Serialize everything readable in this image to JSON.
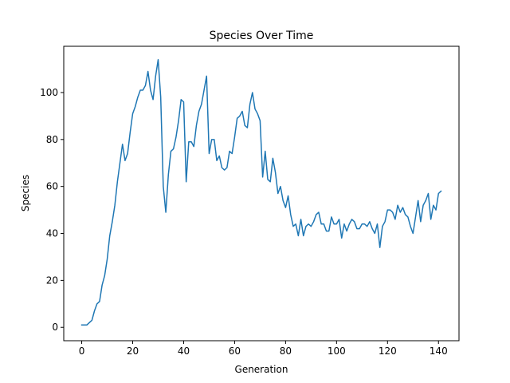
{
  "chart_data": {
    "type": "line",
    "title": "Species Over Time",
    "xlabel": "Generation",
    "ylabel": "Species",
    "xlim": [
      -7.05,
      148.05
    ],
    "ylim": [
      -5.7,
      119.7
    ],
    "xticks": [
      0,
      20,
      40,
      60,
      80,
      100,
      120,
      140
    ],
    "yticks": [
      0,
      20,
      40,
      60,
      80,
      100
    ],
    "grid": false,
    "line_color": "#1f77b4",
    "series": [
      {
        "x": [
          0,
          1,
          2,
          3,
          4,
          5,
          6,
          7,
          8,
          9,
          10,
          11,
          12,
          13,
          14,
          15,
          16,
          17,
          18,
          19,
          20,
          21,
          22,
          23,
          24,
          25,
          26,
          27,
          28,
          29,
          30,
          31,
          32,
          33,
          34,
          35,
          36,
          37,
          38,
          39,
          40,
          41,
          42,
          43,
          44,
          45,
          46,
          47,
          48,
          49,
          50,
          51,
          52,
          53,
          54,
          55,
          56,
          57,
          58,
          59,
          60,
          61,
          62,
          63,
          64,
          65,
          66,
          67,
          68,
          69,
          70,
          71,
          72,
          73,
          74,
          75,
          76,
          77,
          78,
          79,
          80,
          81,
          82,
          83,
          84,
          85,
          86,
          87,
          88,
          89,
          90,
          91,
          92,
          93,
          94,
          95,
          96,
          97,
          98,
          99,
          100,
          101,
          102,
          103,
          104,
          105,
          106,
          107,
          108,
          109,
          110,
          111,
          112,
          113,
          114,
          115,
          116,
          117,
          118,
          119,
          120,
          121,
          122,
          123,
          124,
          125,
          126,
          127,
          128,
          129,
          130,
          131,
          132,
          133,
          134,
          135,
          136,
          137,
          138,
          139,
          140,
          141
        ],
        "values": [
          1,
          1,
          1,
          2,
          3,
          7,
          10,
          11,
          18,
          22,
          29,
          39,
          45,
          52,
          62,
          70,
          78,
          71,
          74,
          83,
          91,
          94,
          98,
          101,
          101,
          103,
          109,
          101,
          97,
          107,
          114,
          98,
          60,
          49,
          65,
          75,
          76,
          81,
          88,
          97,
          96,
          62,
          79,
          79,
          77,
          86,
          92,
          95,
          101,
          107,
          74,
          80,
          80,
          71,
          73,
          68,
          67,
          68,
          75,
          74,
          81,
          89,
          90,
          92,
          86,
          85,
          95,
          100,
          93,
          91,
          88,
          64,
          75,
          63,
          62,
          72,
          66,
          57,
          60,
          54,
          51,
          56,
          48,
          43,
          44,
          39,
          46,
          39,
          43,
          44,
          43,
          45,
          48,
          49,
          44,
          44,
          41,
          41,
          47,
          44,
          44,
          46,
          38,
          44,
          41,
          44,
          46,
          45,
          42,
          42,
          44,
          44,
          43,
          45,
          42,
          40,
          44,
          34,
          43,
          45,
          50,
          50,
          49,
          46,
          52,
          49,
          51,
          48,
          47,
          43,
          40,
          47,
          54,
          45,
          52,
          54,
          57,
          46,
          52,
          50,
          57,
          58
        ]
      }
    ]
  }
}
